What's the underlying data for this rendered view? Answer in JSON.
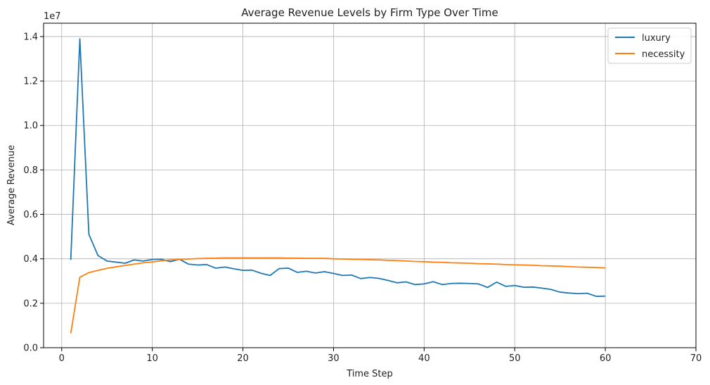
{
  "chart_data": {
    "type": "line",
    "title": "Average Revenue Levels by Firm Type Over Time",
    "xlabel": "Time Step",
    "ylabel": "Average Revenue",
    "y_multiplier": "1e7",
    "xlim": [
      -2,
      70
    ],
    "ylim": [
      0,
      14600000
    ],
    "xticks": [
      0,
      10,
      20,
      30,
      40,
      50,
      60,
      70
    ],
    "yticks": [
      0,
      2000000,
      4000000,
      6000000,
      8000000,
      10000000,
      12000000,
      14000000
    ],
    "ytick_labels": [
      "0.0",
      "0.2",
      "0.4",
      "0.6",
      "0.8",
      "1.0",
      "1.2",
      "1.4"
    ],
    "grid": true,
    "legend_position": "top-right",
    "colors": {
      "luxury": "#1f77b4",
      "necessity": "#ff7f0e"
    },
    "x": [
      1,
      2,
      3,
      4,
      5,
      6,
      7,
      8,
      9,
      10,
      11,
      12,
      13,
      14,
      15,
      16,
      17,
      18,
      19,
      20,
      21,
      22,
      23,
      24,
      25,
      26,
      27,
      28,
      29,
      30,
      31,
      32,
      33,
      34,
      35,
      36,
      37,
      38,
      39,
      40,
      41,
      42,
      43,
      44,
      45,
      46,
      47,
      48,
      49,
      50,
      51,
      52,
      53,
      54,
      55,
      56,
      57,
      58,
      59,
      60
    ],
    "series": [
      {
        "name": "luxury",
        "values": [
          3950000,
          13900000,
          5100000,
          4150000,
          3900000,
          3850000,
          3800000,
          3950000,
          3900000,
          3970000,
          3980000,
          3870000,
          3980000,
          3760000,
          3720000,
          3740000,
          3580000,
          3630000,
          3550000,
          3480000,
          3490000,
          3350000,
          3250000,
          3560000,
          3580000,
          3390000,
          3440000,
          3360000,
          3420000,
          3340000,
          3250000,
          3270000,
          3110000,
          3160000,
          3120000,
          3030000,
          2920000,
          2960000,
          2840000,
          2870000,
          2970000,
          2840000,
          2890000,
          2900000,
          2890000,
          2870000,
          2710000,
          2950000,
          2760000,
          2800000,
          2720000,
          2730000,
          2680000,
          2620000,
          2500000,
          2460000,
          2430000,
          2450000,
          2310000,
          2320000
        ]
      },
      {
        "name": "necessity",
        "values": [
          650000,
          3170000,
          3380000,
          3480000,
          3570000,
          3640000,
          3700000,
          3760000,
          3820000,
          3860000,
          3910000,
          3950000,
          3970000,
          3990000,
          4010000,
          4020000,
          4030000,
          4040000,
          4040000,
          4040000,
          4040000,
          4040000,
          4040000,
          4040000,
          4030000,
          4030000,
          4020000,
          4020000,
          4020000,
          4000000,
          3990000,
          3980000,
          3970000,
          3960000,
          3950000,
          3930000,
          3920000,
          3900000,
          3880000,
          3870000,
          3850000,
          3840000,
          3820000,
          3810000,
          3800000,
          3780000,
          3770000,
          3760000,
          3740000,
          3730000,
          3720000,
          3710000,
          3690000,
          3680000,
          3670000,
          3650000,
          3630000,
          3620000,
          3610000,
          3590000
        ]
      }
    ]
  }
}
